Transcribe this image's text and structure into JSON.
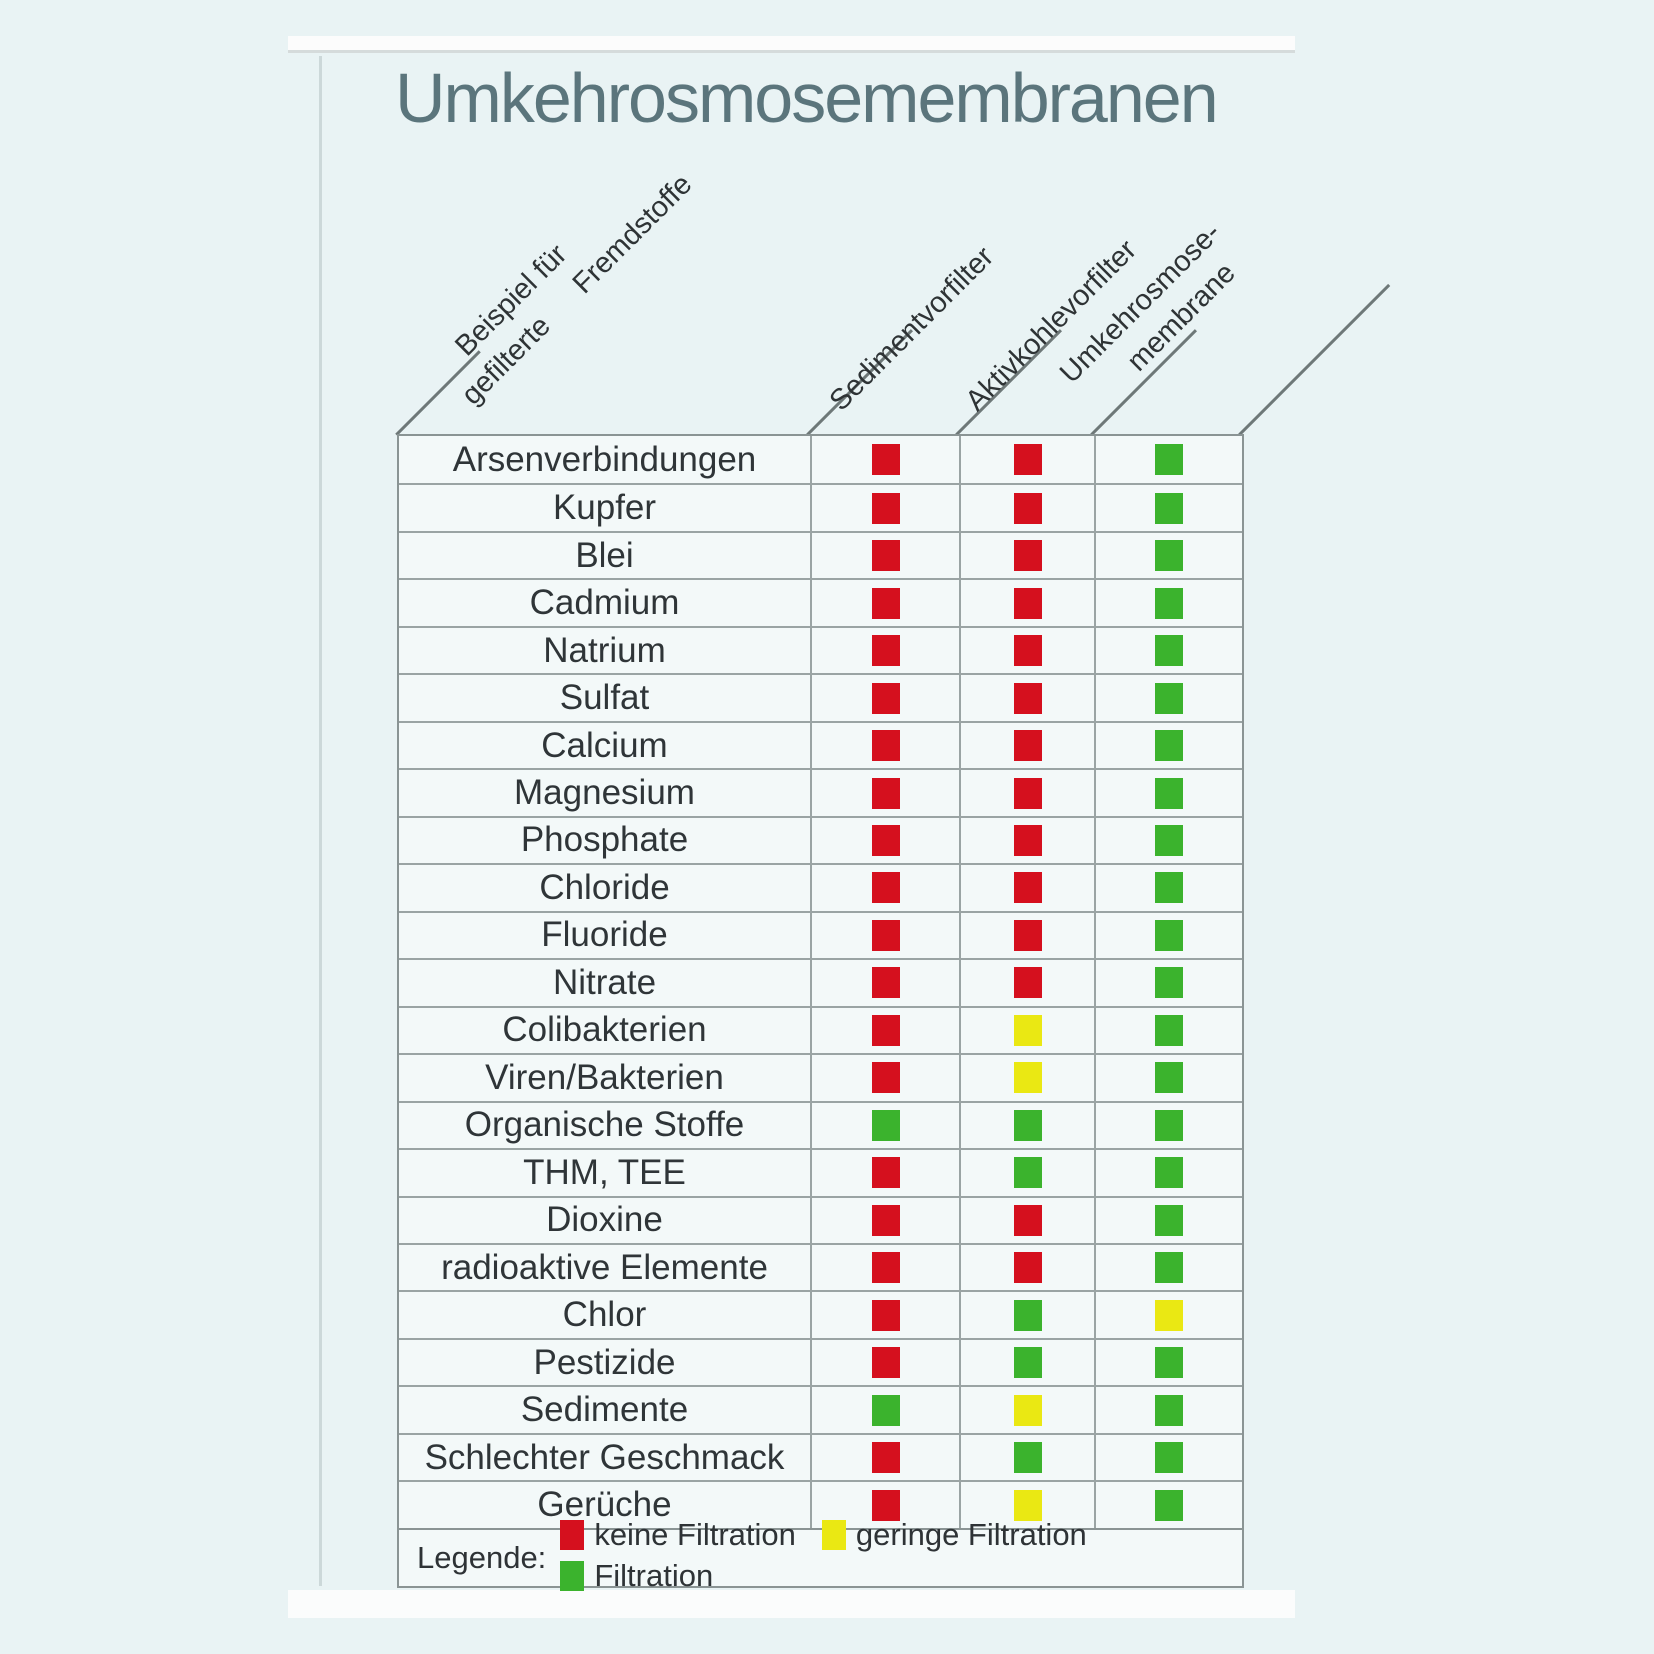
{
  "title": "Umkehrosmosemembranen",
  "chart_data": {
    "type": "table",
    "title": "Umkehrosmosemembranen",
    "row_header_lines": [
      "Beispiel für",
      "gefilterte",
      "Fremdstoffe"
    ],
    "columns": [
      {
        "id": "sedimentvorfilter",
        "label_lines": [
          "Sedimentvorfilter"
        ]
      },
      {
        "id": "aktivkohlevorfilter",
        "label_lines": [
          "Aktivkohlevorfilter"
        ]
      },
      {
        "id": "umkehrosmose-membrane",
        "label_lines": [
          "Umkehrosmose-",
          "membrane"
        ]
      }
    ],
    "value_colors": {
      "red": "#d5101e",
      "yellow": "#eae813",
      "green": "#3bb32d"
    },
    "value_meanings": {
      "red": "keine Filtration",
      "yellow": "geringe Filtration",
      "green": "Filtration"
    },
    "rows": [
      {
        "label": "Arsenverbindungen",
        "values": [
          "red",
          "red",
          "green"
        ]
      },
      {
        "label": "Kupfer",
        "values": [
          "red",
          "red",
          "green"
        ]
      },
      {
        "label": "Blei",
        "values": [
          "red",
          "red",
          "green"
        ]
      },
      {
        "label": "Cadmium",
        "values": [
          "red",
          "red",
          "green"
        ]
      },
      {
        "label": "Natrium",
        "values": [
          "red",
          "red",
          "green"
        ]
      },
      {
        "label": "Sulfat",
        "values": [
          "red",
          "red",
          "green"
        ]
      },
      {
        "label": "Calcium",
        "values": [
          "red",
          "red",
          "green"
        ]
      },
      {
        "label": "Magnesium",
        "values": [
          "red",
          "red",
          "green"
        ]
      },
      {
        "label": "Phosphate",
        "values": [
          "red",
          "red",
          "green"
        ]
      },
      {
        "label": "Chloride",
        "values": [
          "red",
          "red",
          "green"
        ]
      },
      {
        "label": "Fluoride",
        "values": [
          "red",
          "red",
          "green"
        ]
      },
      {
        "label": "Nitrate",
        "values": [
          "red",
          "red",
          "green"
        ]
      },
      {
        "label": "Colibakterien",
        "values": [
          "red",
          "yellow",
          "green"
        ]
      },
      {
        "label": "Viren/Bakterien",
        "values": [
          "red",
          "yellow",
          "green"
        ]
      },
      {
        "label": "Organische Stoffe",
        "values": [
          "green",
          "green",
          "green"
        ]
      },
      {
        "label": "THM, TEE",
        "values": [
          "red",
          "green",
          "green"
        ]
      },
      {
        "label": "Dioxine",
        "values": [
          "red",
          "red",
          "green"
        ]
      },
      {
        "label": "radioaktive Elemente",
        "values": [
          "red",
          "red",
          "green"
        ]
      },
      {
        "label": "Chlor",
        "values": [
          "red",
          "green",
          "yellow"
        ]
      },
      {
        "label": "Pestizide",
        "values": [
          "red",
          "green",
          "green"
        ]
      },
      {
        "label": "Sedimente",
        "values": [
          "green",
          "yellow",
          "green"
        ]
      },
      {
        "label": "Schlechter Geschmack",
        "values": [
          "red",
          "green",
          "green"
        ]
      },
      {
        "label": "Gerüche",
        "values": [
          "red",
          "yellow",
          "green"
        ]
      }
    ]
  },
  "legend": {
    "prefix": "Legende:",
    "items": [
      {
        "color": "red",
        "label": "keine Filtration"
      },
      {
        "color": "yellow",
        "label": "geringe Filtration"
      },
      {
        "color": "green",
        "label": "Filtration"
      }
    ]
  }
}
